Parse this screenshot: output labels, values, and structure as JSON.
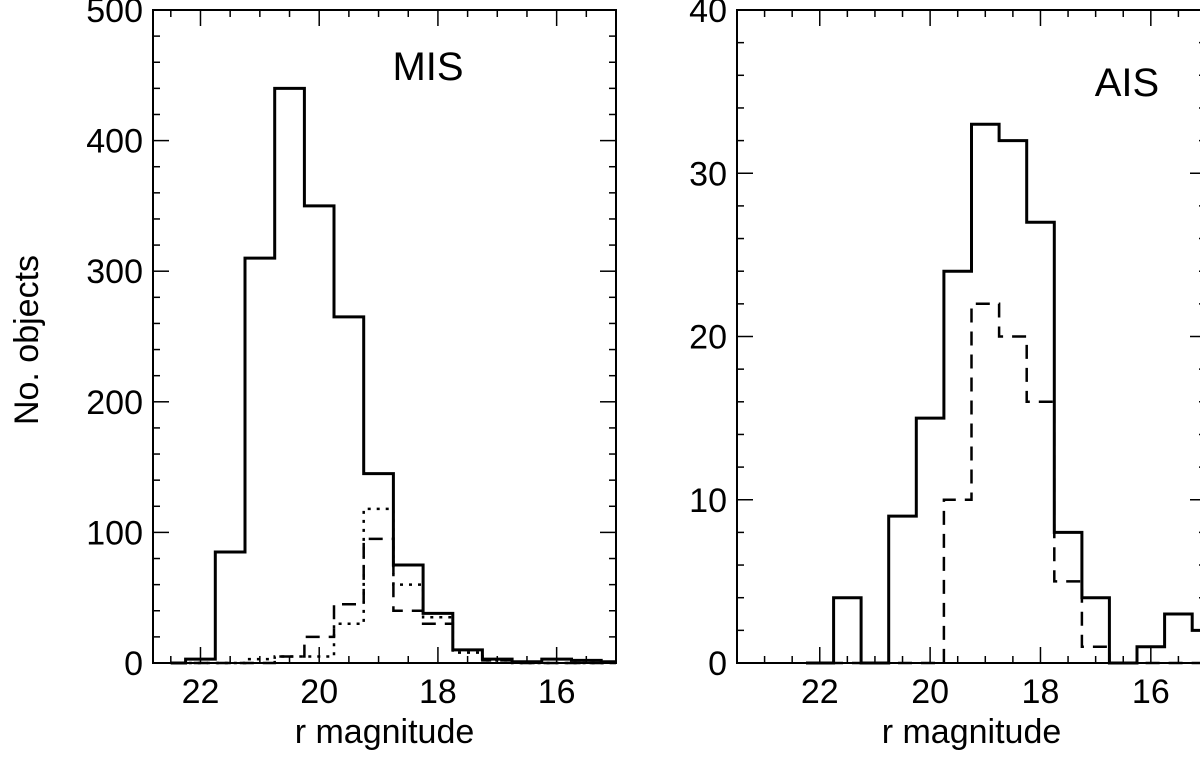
{
  "ylabel": "No. objects",
  "chart_data": [
    {
      "type": "step",
      "title": "MIS",
      "xlabel": "r magnitude",
      "ylabel": "No. objects",
      "xlim": [
        22.8,
        15.0
      ],
      "ylim": [
        0,
        500
      ],
      "xticks": [
        22,
        20,
        18,
        16
      ],
      "yticks": [
        0,
        100,
        200,
        300,
        400,
        500
      ],
      "x_edges": [
        22.5,
        22.25,
        21.75,
        21.25,
        20.75,
        20.25,
        19.75,
        19.25,
        18.75,
        18.25,
        17.75,
        17.25,
        16.75,
        16.25,
        15.75,
        15.25,
        15.0
      ],
      "series": [
        {
          "style": "solid",
          "values": [
            0,
            3,
            85,
            310,
            440,
            350,
            265,
            145,
            75,
            38,
            10,
            3,
            1,
            3,
            2,
            1
          ]
        },
        {
          "style": "dashed",
          "values": [
            0,
            0,
            0,
            0,
            5,
            20,
            45,
            95,
            40,
            30,
            10,
            2,
            0,
            0,
            0,
            0
          ]
        },
        {
          "style": "dotted",
          "values": [
            0,
            0,
            0,
            3,
            5,
            5,
            30,
            118,
            60,
            35,
            8,
            2,
            0,
            0,
            0,
            0
          ]
        }
      ]
    },
    {
      "type": "step",
      "title": "AIS",
      "xlabel": "r magnitude",
      "xlim": [
        23.5,
        15.0
      ],
      "ylim": [
        0,
        40
      ],
      "xticks": [
        22,
        20,
        18,
        16
      ],
      "yticks": [
        0,
        10,
        20,
        30,
        40
      ],
      "x_edges": [
        22.25,
        21.75,
        21.25,
        20.75,
        20.25,
        19.75,
        19.25,
        18.75,
        18.25,
        17.75,
        17.25,
        16.75,
        16.25,
        15.75,
        15.25,
        15.0
      ],
      "series": [
        {
          "style": "solid",
          "values": [
            0,
            4,
            0,
            9,
            15,
            24,
            33,
            32,
            27,
            8,
            4,
            0,
            1,
            3,
            2
          ]
        },
        {
          "style": "dashed",
          "values": [
            0,
            0,
            0,
            0,
            0,
            10,
            22,
            20,
            16,
            5,
            1,
            0,
            0,
            0,
            0
          ]
        }
      ]
    }
  ]
}
